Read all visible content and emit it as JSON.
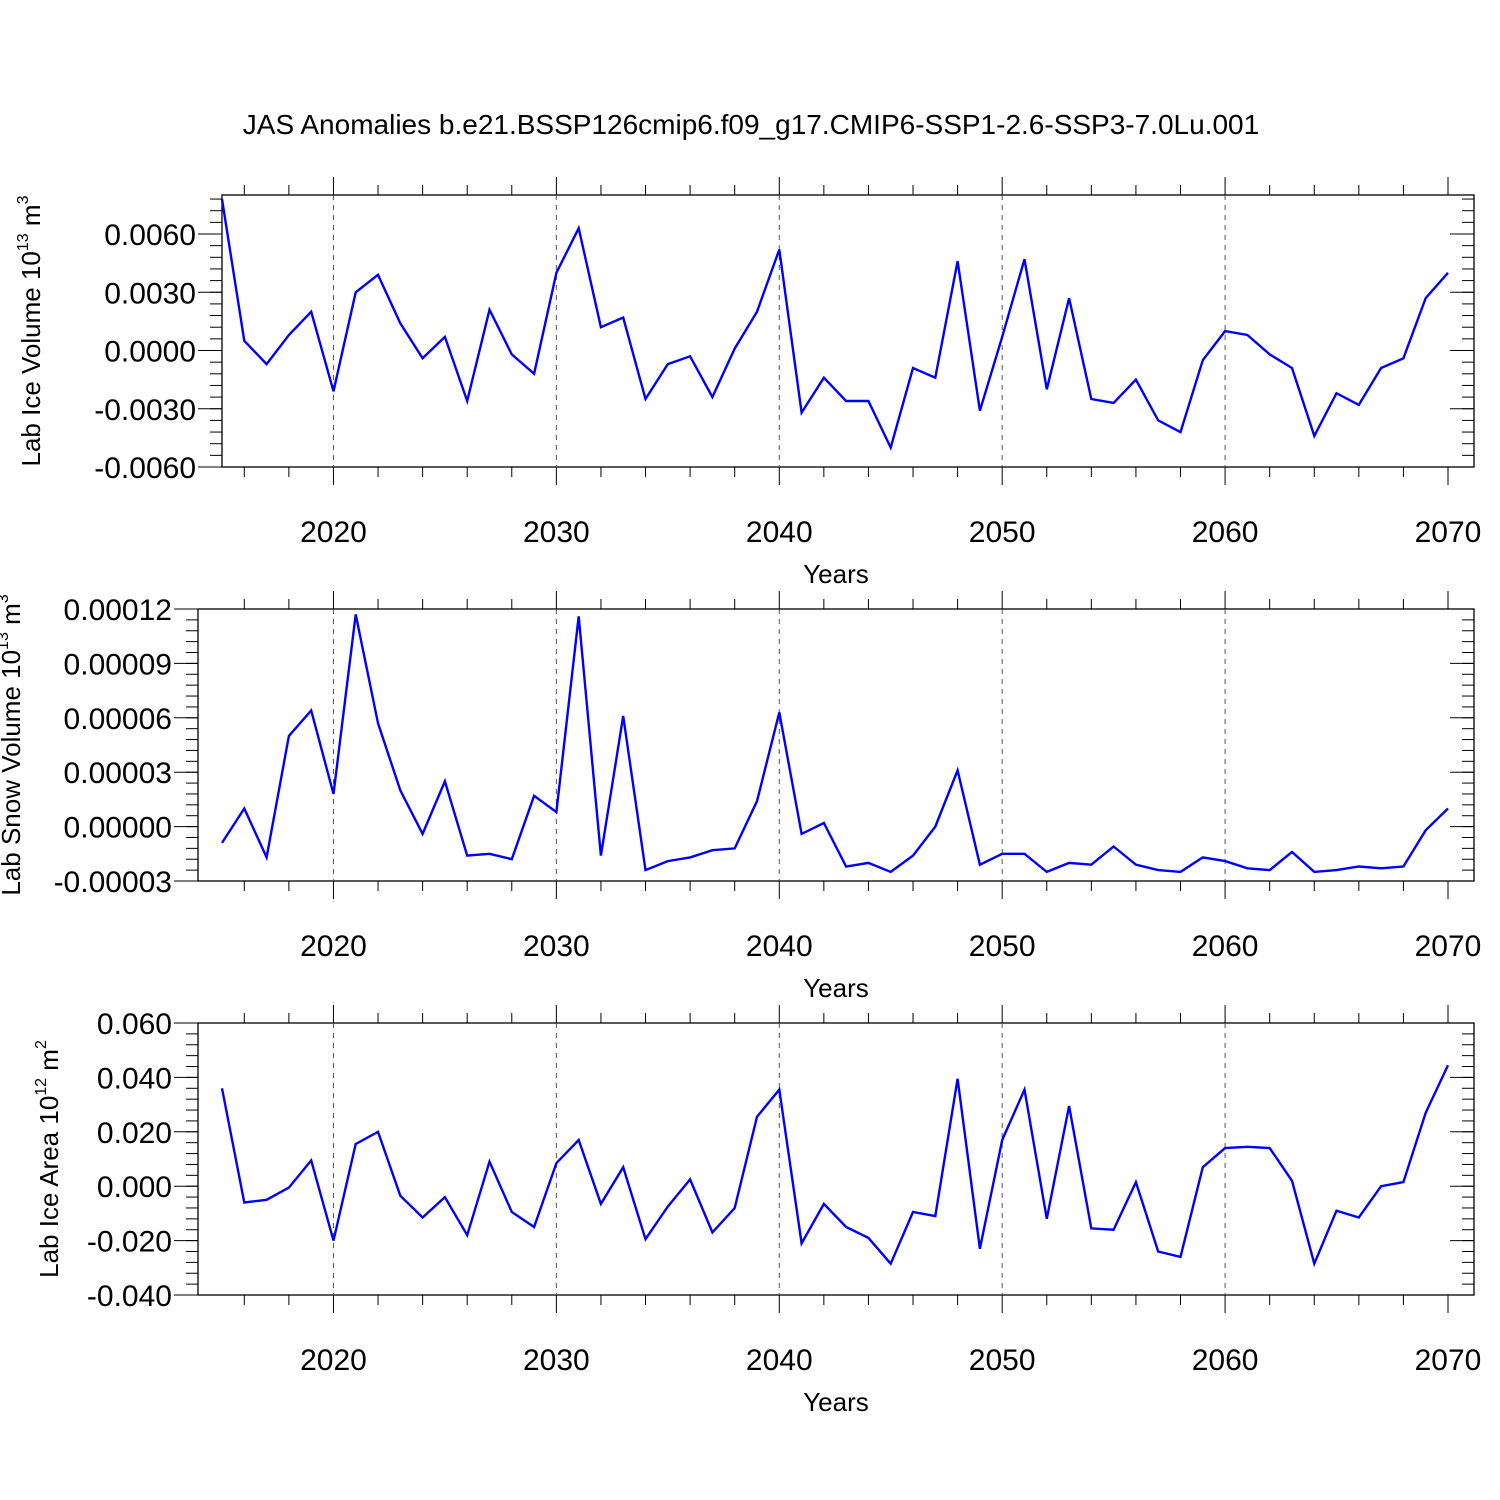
{
  "title": "JAS Anomalies b.e21.BSSP126cmip6.f09_g17.CMIP6-SSP1-2.6-SSP3-7.0Lu.001",
  "colors": {
    "line": "#0000ff",
    "axis": "#000000",
    "grid": "#555555"
  },
  "chart_data": [
    {
      "type": "line",
      "ylabel": "Lab Ice Volume 10",
      "ylabel_exp": "13",
      "ylabel_unit": " m",
      "ylabel_unit_exp": "3",
      "xlabel": "Years",
      "xlim": [
        2015,
        2070
      ],
      "ylim": [
        -0.006,
        0.008
      ],
      "yticks": [
        -0.006,
        -0.003,
        0.0,
        0.003,
        0.006
      ],
      "ytick_labels": [
        "-0.0060",
        "-0.0030",
        "0.0000",
        "0.0030",
        "0.0060"
      ],
      "xticks": [
        2020,
        2030,
        2040,
        2050,
        2060,
        2070
      ],
      "xtick_labels": [
        "2020",
        "2030",
        "2040",
        "2050",
        "2060",
        "2070"
      ],
      "vgrid": [
        2020,
        2030,
        2040,
        2050,
        2060
      ],
      "x": [
        2015,
        2016,
        2017,
        2018,
        2019,
        2020,
        2021,
        2022,
        2023,
        2024,
        2025,
        2026,
        2027,
        2028,
        2029,
        2030,
        2031,
        2032,
        2033,
        2034,
        2035,
        2036,
        2037,
        2038,
        2039,
        2040,
        2041,
        2042,
        2043,
        2044,
        2045,
        2046,
        2047,
        2048,
        2049,
        2050,
        2051,
        2052,
        2053,
        2054,
        2055,
        2056,
        2057,
        2058,
        2059,
        2060,
        2061,
        2062,
        2063,
        2064,
        2065,
        2066,
        2067,
        2068,
        2069,
        2070
      ],
      "series": [
        {
          "values": [
            0.0078,
            0.0005,
            -0.0007,
            0.0008,
            0.002,
            -0.0021,
            0.003,
            0.0039,
            0.0014,
            -0.0004,
            0.0007,
            -0.0026,
            0.0021,
            -0.0002,
            -0.0012,
            0.004,
            0.0063,
            0.0012,
            0.0017,
            -0.0025,
            -0.0007,
            -0.0003,
            -0.0024,
            0.0001,
            0.002,
            0.0052,
            -0.0032,
            -0.0014,
            -0.0026,
            -0.0026,
            -0.005,
            -0.0009,
            -0.0014,
            0.0046,
            -0.0031,
            0.0007,
            0.0047,
            -0.002,
            0.0027,
            -0.0025,
            -0.0027,
            -0.0015,
            -0.0036,
            -0.0042,
            -0.0005,
            0.001,
            0.0008,
            -0.0002,
            -0.0009,
            -0.0044,
            -0.0022,
            -0.0028,
            -0.0009,
            -0.0004,
            0.0027,
            0.004
          ]
        }
      ]
    },
    {
      "type": "line",
      "ylabel": "Lab Snow Volume 10",
      "ylabel_exp": "13",
      "ylabel_unit": " m",
      "ylabel_unit_exp": "3",
      "xlabel": "Years",
      "xlim": [
        2015,
        2070
      ],
      "ylim": [
        -3e-05,
        0.00012
      ],
      "yticks": [
        -3e-05,
        0.0,
        3e-05,
        6e-05,
        9e-05,
        0.00012
      ],
      "ytick_labels": [
        "-0.00003",
        "0.00000",
        "0.00003",
        "0.00006",
        "0.00009",
        "0.00012"
      ],
      "xticks": [
        2020,
        2030,
        2040,
        2050,
        2060,
        2070
      ],
      "xtick_labels": [
        "2020",
        "2030",
        "2040",
        "2050",
        "2060",
        "2070"
      ],
      "vgrid": [
        2020,
        2030,
        2040,
        2050,
        2060
      ],
      "x": [
        2015,
        2016,
        2017,
        2018,
        2019,
        2020,
        2021,
        2022,
        2023,
        2024,
        2025,
        2026,
        2027,
        2028,
        2029,
        2030,
        2031,
        2032,
        2033,
        2034,
        2035,
        2036,
        2037,
        2038,
        2039,
        2040,
        2041,
        2042,
        2043,
        2044,
        2045,
        2046,
        2047,
        2048,
        2049,
        2050,
        2051,
        2052,
        2053,
        2054,
        2055,
        2056,
        2057,
        2058,
        2059,
        2060,
        2061,
        2062,
        2063,
        2064,
        2065,
        2066,
        2067,
        2068,
        2069,
        2070
      ],
      "series": [
        {
          "values": [
            -9e-06,
            1e-05,
            -1.7e-05,
            5e-05,
            6.4e-05,
            1.8e-05,
            0.000117,
            5.7e-05,
            2e-05,
            -4e-06,
            2.5e-05,
            -1.6e-05,
            -1.5e-05,
            -1.8e-05,
            1.7e-05,
            8e-06,
            0.000116,
            -1.6e-05,
            6.1e-05,
            -2.4e-05,
            -1.9e-05,
            -1.7e-05,
            -1.3e-05,
            -1.2e-05,
            1.4e-05,
            6.3e-05,
            -4e-06,
            2e-06,
            -2.2e-05,
            -2e-05,
            -2.5e-05,
            -1.6e-05,
            0.0,
            3.1e-05,
            -2.1e-05,
            -1.5e-05,
            -1.5e-05,
            -2.5e-05,
            -2e-05,
            -2.1e-05,
            -1.1e-05,
            -2.1e-05,
            -2.4e-05,
            -2.5e-05,
            -1.7e-05,
            -1.9e-05,
            -2.3e-05,
            -2.4e-05,
            -1.4e-05,
            -2.5e-05,
            -2.4e-05,
            -2.2e-05,
            -2.3e-05,
            -2.2e-05,
            -2e-06,
            1e-05
          ]
        }
      ]
    },
    {
      "type": "line",
      "ylabel": "Lab Ice Area 10",
      "ylabel_exp": "12",
      "ylabel_unit": " m",
      "ylabel_unit_exp": "2",
      "xlabel": "Years",
      "xlim": [
        2015,
        2070
      ],
      "ylim": [
        -0.04,
        0.06
      ],
      "yticks": [
        -0.04,
        -0.02,
        0.0,
        0.02,
        0.04,
        0.06
      ],
      "ytick_labels": [
        "-0.040",
        "-0.020",
        "0.000",
        "0.020",
        "0.040",
        "0.060"
      ],
      "xticks": [
        2020,
        2030,
        2040,
        2050,
        2060,
        2070
      ],
      "xtick_labels": [
        "2020",
        "2030",
        "2040",
        "2050",
        "2060",
        "2070"
      ],
      "vgrid": [
        2020,
        2030,
        2040,
        2050,
        2060
      ],
      "x": [
        2015,
        2016,
        2017,
        2018,
        2019,
        2020,
        2021,
        2022,
        2023,
        2024,
        2025,
        2026,
        2027,
        2028,
        2029,
        2030,
        2031,
        2032,
        2033,
        2034,
        2035,
        2036,
        2037,
        2038,
        2039,
        2040,
        2041,
        2042,
        2043,
        2044,
        2045,
        2046,
        2047,
        2048,
        2049,
        2050,
        2051,
        2052,
        2053,
        2054,
        2055,
        2056,
        2057,
        2058,
        2059,
        2060,
        2061,
        2062,
        2063,
        2064,
        2065,
        2066,
        2067,
        2068,
        2069,
        2070
      ],
      "series": [
        {
          "values": [
            0.036,
            -0.006,
            -0.005,
            -0.0005,
            0.0095,
            -0.02,
            0.0155,
            0.02,
            -0.0035,
            -0.0115,
            -0.004,
            -0.018,
            0.009,
            -0.0095,
            -0.015,
            0.0085,
            0.017,
            -0.0065,
            0.007,
            -0.0195,
            -0.0075,
            0.0025,
            -0.017,
            -0.008,
            0.0255,
            0.0355,
            -0.021,
            -0.0065,
            -0.015,
            -0.019,
            -0.0285,
            -0.0095,
            -0.011,
            0.0395,
            -0.023,
            0.017,
            0.0355,
            -0.012,
            0.0295,
            -0.0155,
            -0.016,
            0.0015,
            -0.024,
            -0.026,
            0.007,
            0.014,
            0.0145,
            0.014,
            0.002,
            -0.0285,
            -0.009,
            -0.0115,
            -0.0,
            0.0015,
            0.027,
            0.0445
          ]
        }
      ]
    }
  ]
}
